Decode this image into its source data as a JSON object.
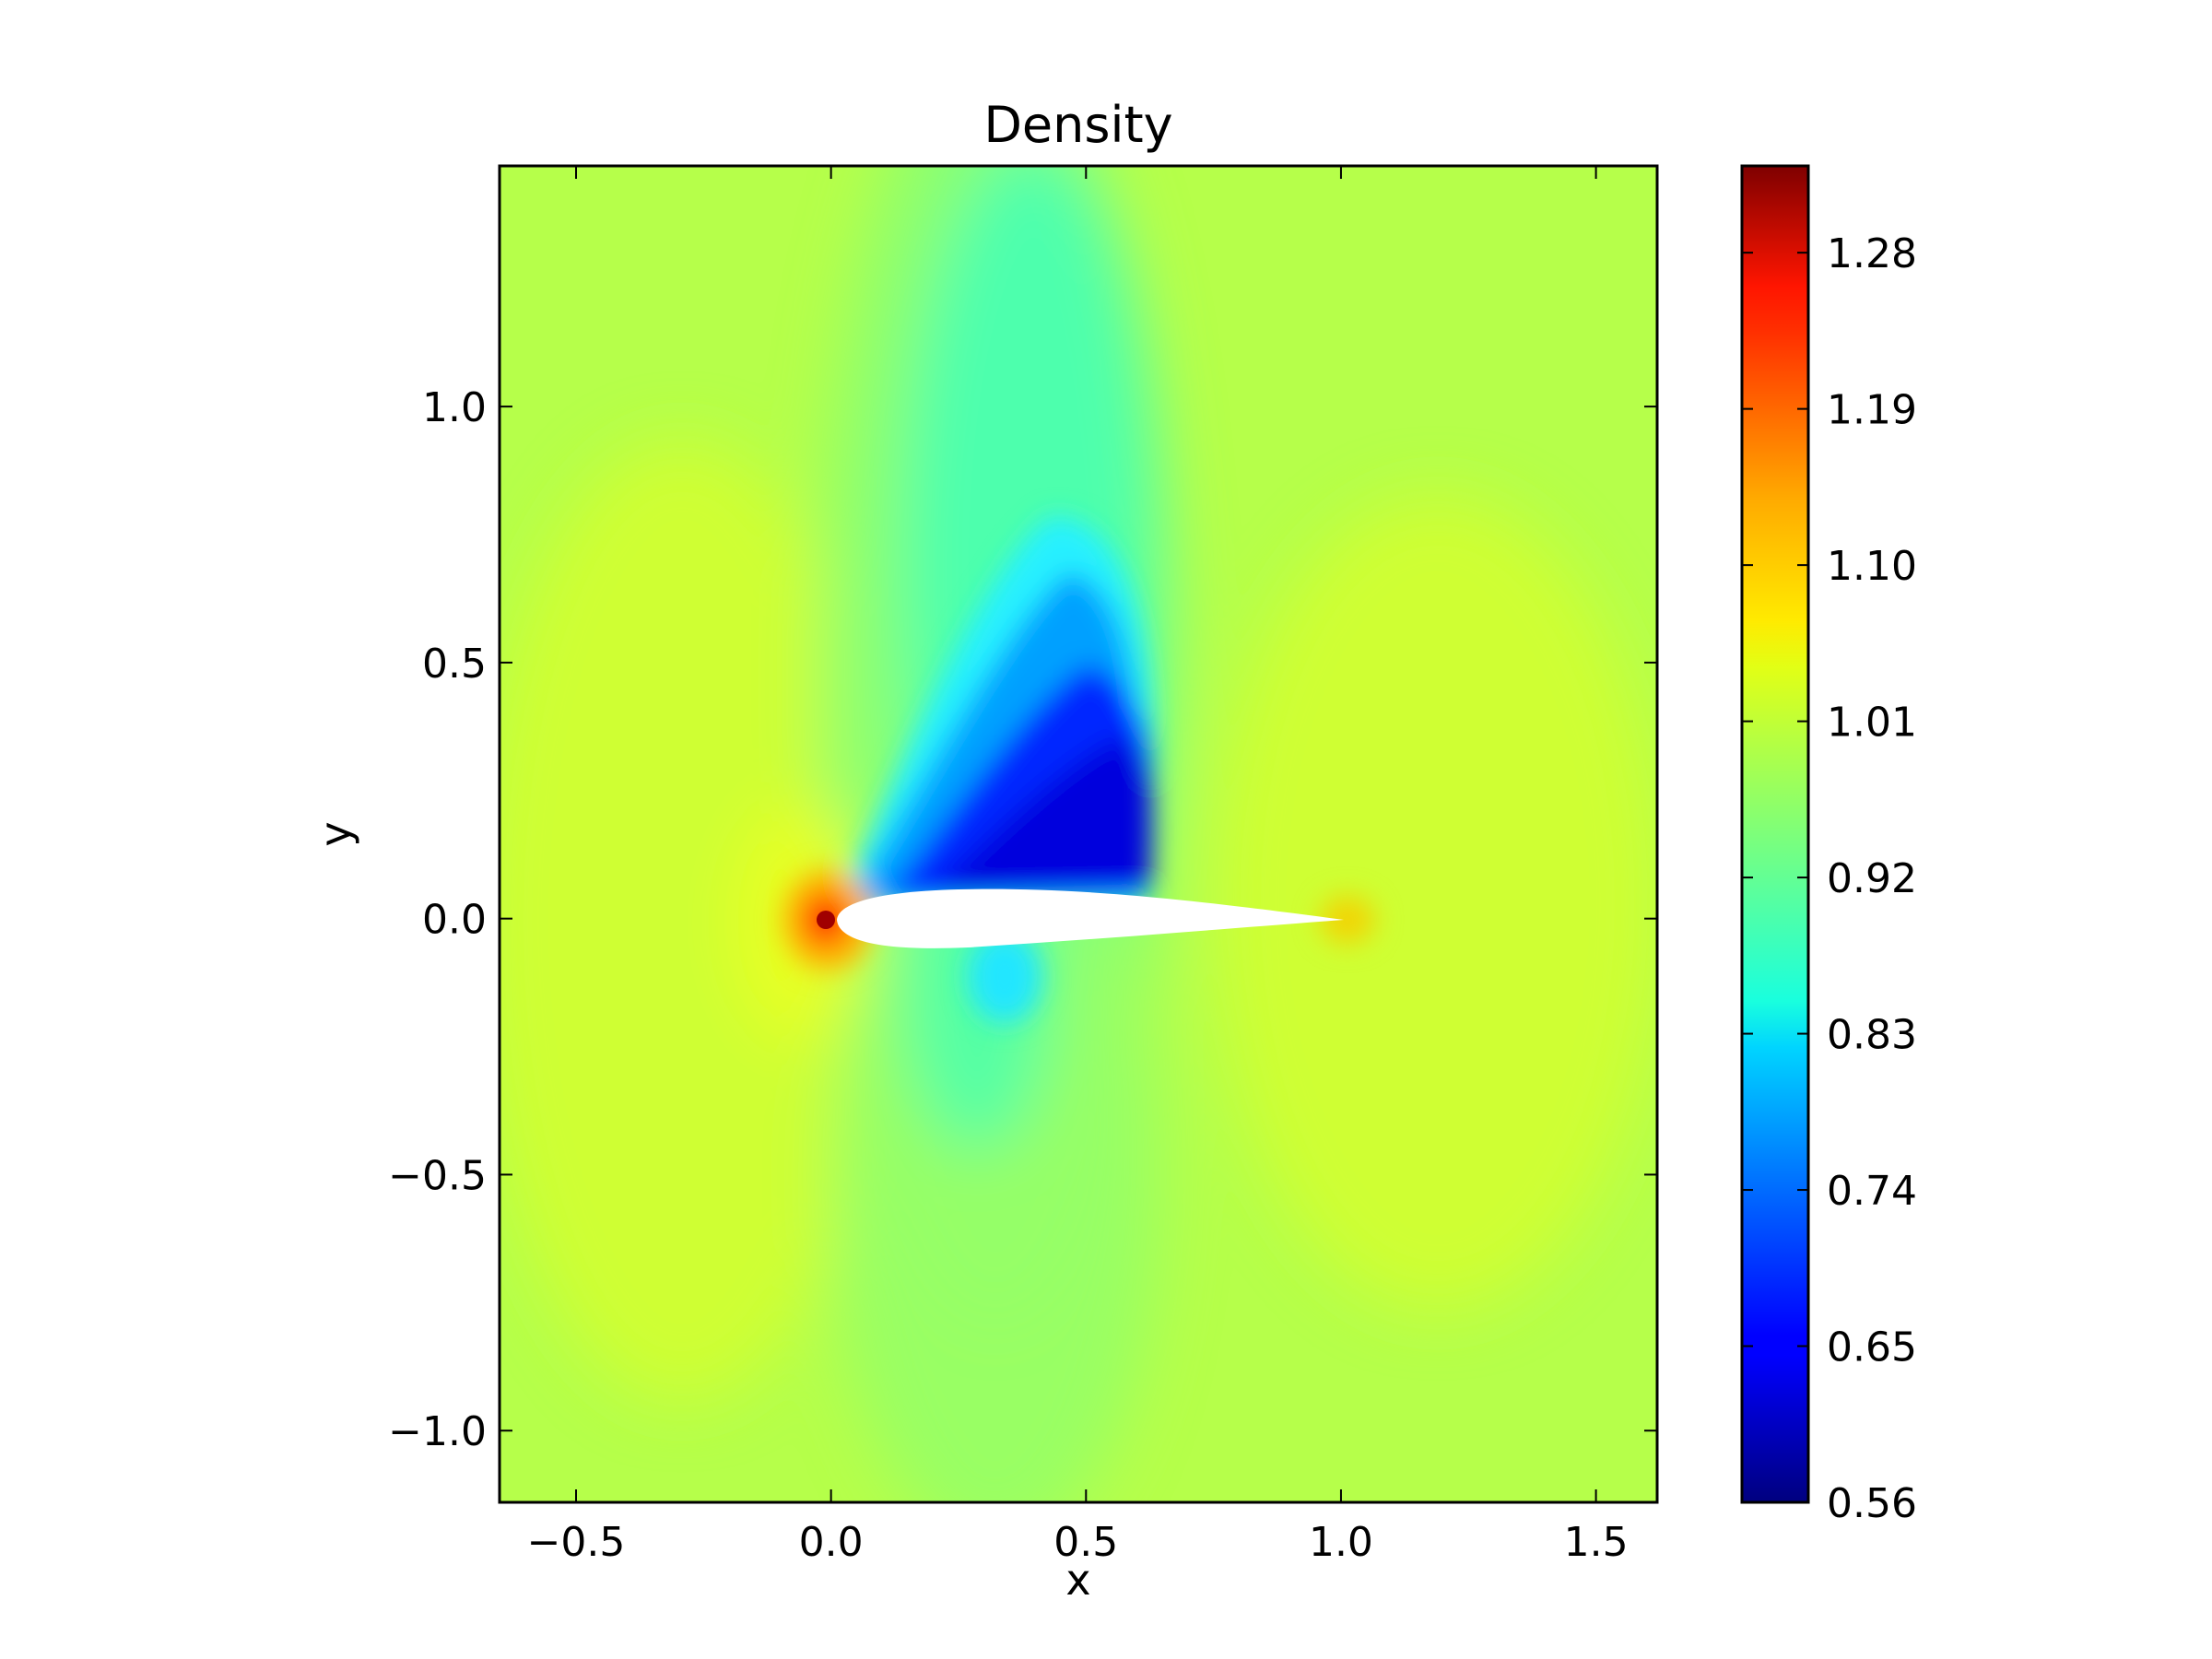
{
  "chart_data": {
    "type": "heatmap",
    "title": "Density",
    "xlabel": "x",
    "ylabel": "y",
    "xlim": [
      -0.65,
      1.62
    ],
    "ylim": [
      -1.14,
      1.47
    ],
    "xticks": [
      -0.5,
      0.0,
      0.5,
      1.0,
      1.5
    ],
    "xtick_labels": [
      "−0.5",
      "0.0",
      "0.5",
      "1.0",
      "1.5"
    ],
    "yticks": [
      -1.0,
      -0.5,
      0.0,
      0.5,
      1.0
    ],
    "ytick_labels": [
      "−1.0",
      "−0.5",
      "0.0",
      "0.5",
      "1.0"
    ],
    "colorbar": {
      "range": [
        0.56,
        1.33
      ],
      "ticks": [
        0.56,
        0.65,
        0.74,
        0.83,
        0.92,
        1.01,
        1.1,
        1.19,
        1.28
      ],
      "tick_labels": [
        "0.56",
        "0.65",
        "0.74",
        "0.83",
        "0.92",
        "1.01",
        "1.10",
        "1.19",
        "1.28"
      ],
      "colormap": "jet"
    },
    "grid": false,
    "airfoil": {
      "leading_edge_x": 0.0,
      "trailing_edge_x": 1.0,
      "chord": 1.0,
      "color": "#ffffff"
    },
    "features": [
      {
        "name": "stagnation-leading-edge",
        "x": 0.0,
        "y": 0.0,
        "value": 1.33
      },
      {
        "name": "suction-low-density",
        "x": 0.5,
        "y": 0.2,
        "value": 0.6
      },
      {
        "name": "lower-surface-low",
        "x": 0.28,
        "y": -0.1,
        "value": 0.86
      },
      {
        "name": "stagnation-trailing-edge",
        "x": 1.0,
        "y": 0.0,
        "value": 1.1
      },
      {
        "name": "freestream",
        "value": 1.01
      }
    ]
  }
}
